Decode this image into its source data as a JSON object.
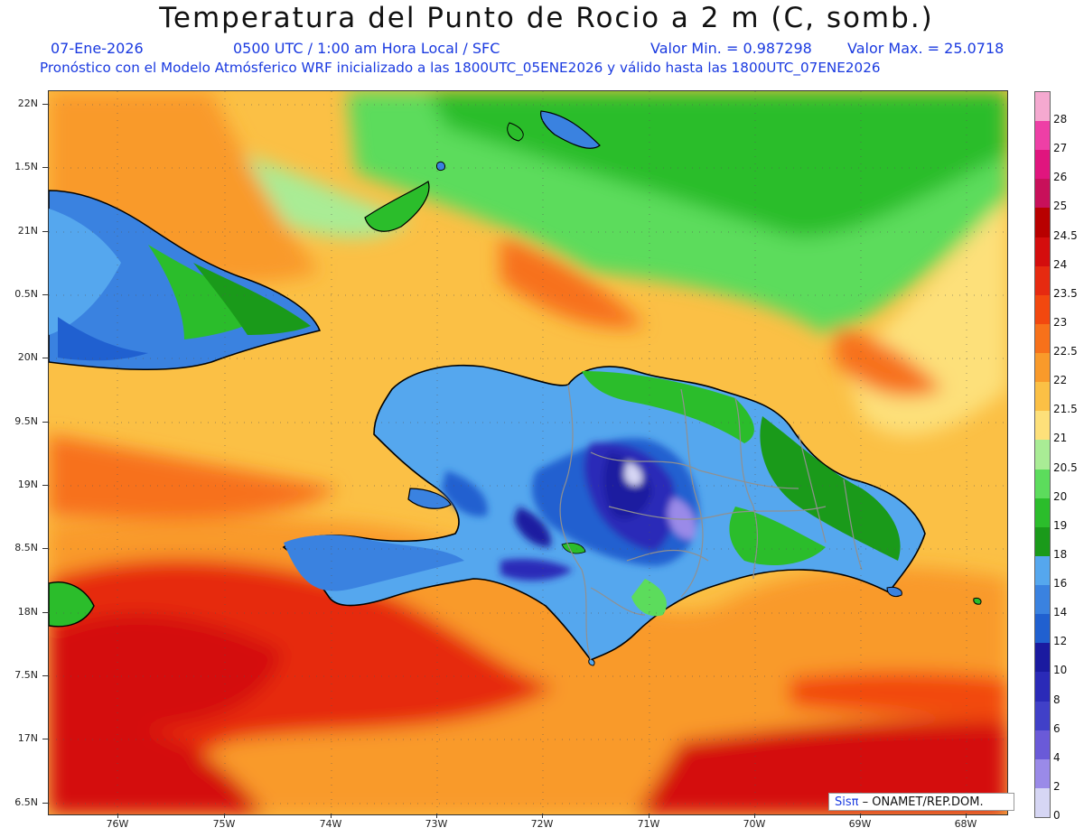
{
  "title": "Temperatura del Punto de Rocio a 2 m (C, somb.)",
  "subtitle": {
    "date": "07-Ene-2026",
    "time": "0500 UTC / 1:00 am Hora Local / SFC",
    "min": "Valor Min. = 0.987298",
    "max": "Valor Max. = 25.0718",
    "model": "Pronóstico con el Modelo Atmósferico WRF inicializado a las 1800UTC_05ENE2026 y válido hasta las  1800UTC_07ENE2026"
  },
  "axes": {
    "lat_labels": [
      "22N",
      "1.5N",
      "21N",
      "0.5N",
      "20N",
      "9.5N",
      "19N",
      "8.5N",
      "18N",
      "7.5N",
      "17N",
      "6.5N"
    ],
    "lon_labels": [
      "76W",
      "75W",
      "74W",
      "73W",
      "72W",
      "71W",
      "70W",
      "69W",
      "68W"
    ]
  },
  "colorbar": {
    "labels": [
      "28",
      "27",
      "26",
      "25",
      "24.5",
      "24",
      "23.5",
      "23",
      "22.5",
      "22",
      "21.5",
      "21",
      "20.5",
      "20",
      "19",
      "18",
      "16",
      "14",
      "12",
      "10",
      "8",
      "6",
      "4",
      "2",
      "0"
    ],
    "colors": [
      "#f5a9d0",
      "#ee3fa6",
      "#e0157e",
      "#c8105a",
      "#b80000",
      "#d40d0d",
      "#e62a10",
      "#f2480f",
      "#f7711a",
      "#f99a2a",
      "#fbc045",
      "#fde07a",
      "#a9ec95",
      "#5cdc5c",
      "#2bbd2b",
      "#1a9a1a",
      "#55a7ee",
      "#3a82e0",
      "#2060d0",
      "#1a1aa0",
      "#2a2ab8",
      "#4040c8",
      "#6a5ad8",
      "#9a8ae8",
      "#d6d6f4"
    ]
  },
  "credit": {
    "sis": "Sisπ",
    "text": "– ONAMET/REP.DOM."
  }
}
